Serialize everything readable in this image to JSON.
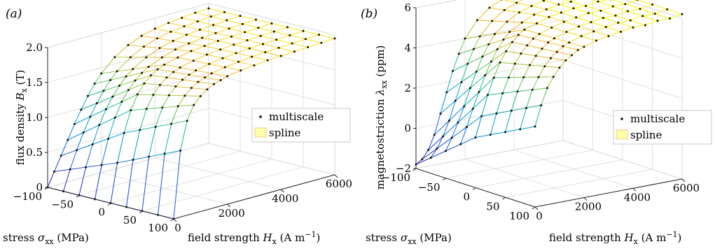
{
  "chart_data": [
    {
      "type": "surface",
      "panel_label": "(a)",
      "zlabel": "flux density B_x (T)",
      "xlabel": "field strength H_x (A m⁻¹)",
      "ylabel": "stress σ_xx (MPa)",
      "x_ticks": [
        "0",
        "2000",
        "4000",
        "6000"
      ],
      "y_ticks": [
        "100",
        "50",
        "0",
        "−50",
        "−100"
      ],
      "z_ticks": [
        "0",
        "0.5",
        "1.0",
        "1.5",
        "2.0"
      ],
      "xlim": [
        0,
        6000
      ],
      "ylim": [
        -100,
        100
      ],
      "zlim": [
        0,
        2.0
      ],
      "grid": true,
      "legend": [
        "multiscale",
        "spline"
      ],
      "legend_position": "right",
      "field_strength": [
        0,
        250,
        500,
        750,
        1000,
        1250,
        1500,
        1750,
        2000,
        2500,
        3000,
        3500,
        4000,
        4500,
        5000,
        5500,
        6000
      ],
      "stress": [
        100,
        75,
        50,
        25,
        0,
        -25,
        -50,
        -75,
        -100
      ],
      "surface_description": "Bx rises steeply from 0 at H=0 and saturates near 1.9–2.0 T at H=6000; saturation is reached faster at positive (tensile) stress.",
      "series": [
        {
          "name": "multiscale",
          "stress": 100,
          "values": [
            0,
            0.95,
            1.35,
            1.55,
            1.65,
            1.72,
            1.77,
            1.8,
            1.83,
            1.86,
            1.88,
            1.9,
            1.91,
            1.92,
            1.93,
            1.94,
            1.95
          ]
        },
        {
          "name": "multiscale",
          "stress": 0,
          "values": [
            0,
            0.55,
            0.95,
            1.25,
            1.45,
            1.58,
            1.67,
            1.73,
            1.77,
            1.82,
            1.86,
            1.88,
            1.9,
            1.91,
            1.92,
            1.93,
            1.94
          ]
        },
        {
          "name": "multiscale",
          "stress": -100,
          "values": [
            0,
            0.2,
            0.4,
            0.6,
            0.8,
            0.98,
            1.15,
            1.3,
            1.42,
            1.6,
            1.72,
            1.8,
            1.85,
            1.88,
            1.9,
            1.92,
            1.93
          ]
        }
      ]
    },
    {
      "type": "surface",
      "panel_label": "(b)",
      "zlabel": "magnetostriction λ_xx (ppm)",
      "xlabel": "field strength H_x (A m⁻¹)",
      "ylabel": "stress σ_xx (MPa)",
      "x_ticks": [
        "0",
        "2000",
        "4000",
        "6000"
      ],
      "y_ticks": [
        "100",
        "50",
        "0",
        "−50",
        "−100"
      ],
      "z_ticks": [
        "−2",
        "0",
        "2",
        "4",
        "6"
      ],
      "xlim": [
        0,
        6000
      ],
      "ylim": [
        -100,
        100
      ],
      "zlim": [
        -2,
        6
      ],
      "grid": true,
      "legend": [
        "multiscale",
        "spline"
      ],
      "legend_position": "right",
      "field_strength": [
        0,
        250,
        500,
        750,
        1000,
        1250,
        1500,
        1750,
        2000,
        2500,
        3000,
        3500,
        4000,
        4500,
        5000,
        5500,
        6000
      ],
      "stress": [
        100,
        75,
        50,
        25,
        0,
        -25,
        -50,
        -75,
        -100
      ],
      "surface_description": "λ starts near 2 ppm at high tensile stress and near -2 ppm at compressive stress for low field, rising to about 6 ppm at high field.",
      "series": [
        {
          "name": "multiscale",
          "stress": 100,
          "values": [
            2.0,
            3.0,
            3.8,
            4.3,
            4.7,
            5.0,
            5.2,
            5.4,
            5.5,
            5.7,
            5.8,
            5.9,
            6.0,
            6.0,
            6.1,
            6.1,
            6.2
          ]
        },
        {
          "name": "multiscale",
          "stress": 0,
          "values": [
            0.5,
            1.5,
            2.5,
            3.3,
            4.0,
            4.5,
            4.9,
            5.2,
            5.4,
            5.6,
            5.8,
            5.9,
            6.0,
            6.0,
            6.1,
            6.1,
            6.2
          ]
        },
        {
          "name": "multiscale",
          "stress": -100,
          "values": [
            -1.8,
            -1.6,
            -1.2,
            -0.5,
            0.5,
            1.5,
            2.5,
            3.3,
            4.0,
            4.8,
            5.3,
            5.6,
            5.8,
            5.9,
            6.0,
            6.1,
            6.1
          ]
        }
      ]
    }
  ]
}
